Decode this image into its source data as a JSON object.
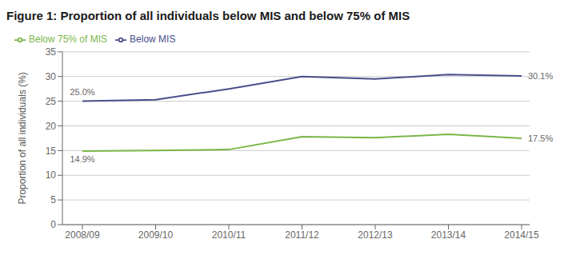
{
  "chart_data": {
    "type": "line",
    "title": "Figure 1: Proportion of all individuals below MIS and below 75% of MIS",
    "y_label": "Proportion of all individuals (%)",
    "categories": [
      "2008/09",
      "2009/10",
      "2010/11",
      "2011/12",
      "2012/13",
      "2013/14",
      "2014/15"
    ],
    "series": [
      {
        "name": "Below MIS",
        "color": "#4a4e8c",
        "values": [
          25.0,
          25.3,
          27.5,
          30.0,
          29.5,
          30.4,
          30.1
        ],
        "value_labels": [
          "25.0%",
          null,
          null,
          null,
          null,
          null,
          "30.1%"
        ]
      },
      {
        "name": "Below 75% of MIS",
        "color": "#7ab648",
        "values": [
          14.9,
          15.0,
          15.2,
          17.8,
          17.6,
          18.3,
          17.5
        ],
        "value_labels": [
          "14.9%",
          null,
          null,
          null,
          null,
          null,
          "17.5%"
        ]
      }
    ],
    "ylim": [
      0,
      35
    ],
    "yticks": [
      0,
      5,
      10,
      15,
      20,
      25,
      30,
      35
    ],
    "grid": true,
    "legend": "upper left"
  }
}
